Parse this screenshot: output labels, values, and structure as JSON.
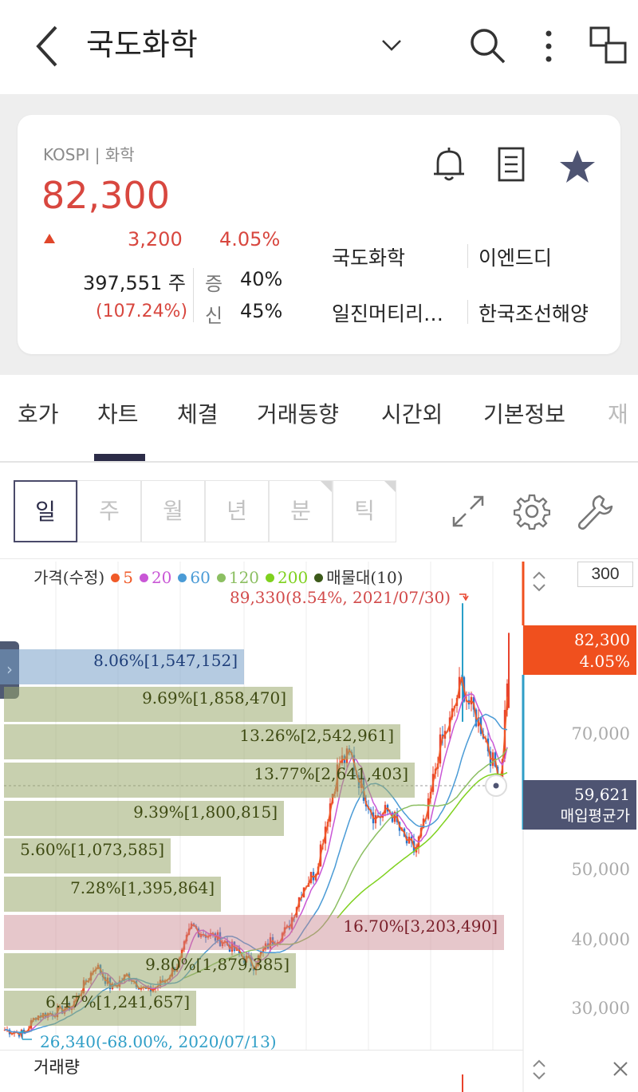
{
  "header": {
    "title": "국도화학"
  },
  "stock": {
    "market": "KOSPI | 화학",
    "price": "82,300",
    "change": "3,200",
    "change_rate": "4.05%",
    "volume": "397,551 주",
    "volume_rate": "(107.24%)",
    "margin_label_1": "증",
    "margin_value_1": "40%",
    "margin_label_2": "신",
    "margin_value_2": "45%"
  },
  "related": [
    "국도화학",
    "이엔드디",
    "일진머티리…",
    "한국조선해양"
  ],
  "tabs": [
    "호가",
    "차트",
    "체결",
    "거래동향",
    "시간외",
    "기본정보",
    "재"
  ],
  "periods": [
    "일",
    "주",
    "월",
    "년",
    "분",
    "틱"
  ],
  "chart_controls": {
    "scale": "300",
    "current_price": "82,300",
    "current_rate": "4.05%",
    "avg_price": "59,621",
    "avg_label": "매입평균가",
    "volume_label": "거래량"
  },
  "legend": {
    "prefix": "가격(수정)",
    "items": [
      {
        "label": "5",
        "color": "#f05a28"
      },
      {
        "label": "20",
        "color": "#c957d6"
      },
      {
        "label": "60",
        "color": "#4a9bd6"
      },
      {
        "label": "120",
        "color": "#8cbf62"
      },
      {
        "label": "200",
        "color": "#7fd11e"
      },
      {
        "label": "매물대(10)",
        "color": "#3c5a1a"
      }
    ]
  },
  "annotations": {
    "high": "89,330(8.54%, 2021/07/30)",
    "low": "26,340(-68.00%, 2020/07/13)"
  },
  "chart_data": {
    "type": "candlestick",
    "y_ticks": [
      "70,000",
      "50,000",
      "40,000",
      "30,000"
    ],
    "ylim": [
      24000,
      93000
    ],
    "high": 89330,
    "low": 26340,
    "last": 82300,
    "avg_price": 59621,
    "volume_profile": [
      {
        "label": "8.06%[1,547,152]",
        "percent": 8.06,
        "volume": 1547152,
        "color": "blue"
      },
      {
        "label": "9.69%[1,858,470]",
        "percent": 9.69,
        "volume": 1858470,
        "color": "green"
      },
      {
        "label": "13.26%[2,542,961]",
        "percent": 13.26,
        "volume": 2542961,
        "color": "green"
      },
      {
        "label": "13.77%[2,641,403]",
        "percent": 13.77,
        "volume": 2641403,
        "color": "green"
      },
      {
        "label": "9.39%[1,800,815]",
        "percent": 9.39,
        "volume": 1800815,
        "color": "green"
      },
      {
        "label": "5.60%[1,073,585]",
        "percent": 5.6,
        "volume": 1073585,
        "color": "green"
      },
      {
        "label": "7.28%[1,395,864]",
        "percent": 7.28,
        "volume": 1395864,
        "color": "green"
      },
      {
        "label": "16.70%[3,203,490]",
        "percent": 16.7,
        "volume": 3203490,
        "color": "red"
      },
      {
        "label": "9.80%[1,879,385]",
        "percent": 9.8,
        "volume": 1879385,
        "color": "green"
      },
      {
        "label": "6.47%[1,241,657]",
        "percent": 6.47,
        "volume": 1241657,
        "color": "green"
      }
    ]
  }
}
